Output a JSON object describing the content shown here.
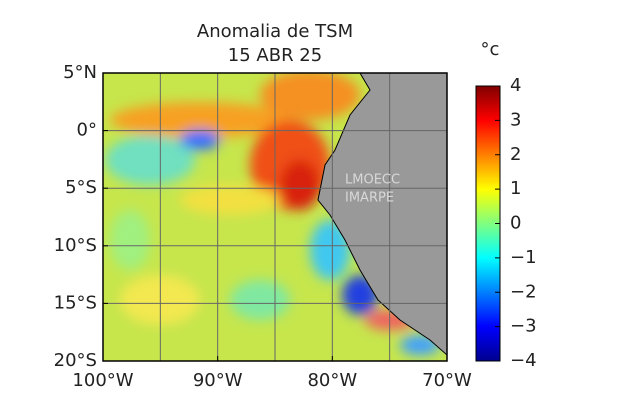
{
  "title": [
    "Anomalia de TSM",
    "15 ABR 25"
  ],
  "map": {
    "xlim": [
      -100,
      -70
    ],
    "ylim": [
      -20,
      5
    ],
    "xticks": [
      {
        "value": -100,
        "label": "100°W"
      },
      {
        "value": -90,
        "label": "90°W"
      },
      {
        "value": -80,
        "label": "80°W"
      },
      {
        "value": -70,
        "label": "70°W"
      }
    ],
    "yticks": [
      {
        "value": 5,
        "label": "5°N"
      },
      {
        "value": 0,
        "label": "0°"
      },
      {
        "value": -5,
        "label": "5°S"
      },
      {
        "value": -10,
        "label": "10°S"
      },
      {
        "value": -15,
        "label": "15°S"
      },
      {
        "value": -20,
        "label": "20°S"
      }
    ],
    "xgrid": [
      -95,
      -90,
      -85,
      -80,
      -75
    ],
    "ygrid": [
      0,
      -5,
      -10,
      -15
    ],
    "watermark": [
      "LMOECC",
      "IMARPE"
    ]
  },
  "colorbar": {
    "label": "°c",
    "lim": [
      -4,
      4
    ],
    "ticks": [
      {
        "value": -4,
        "label": "−4"
      },
      {
        "value": -3,
        "label": "−3"
      },
      {
        "value": -2,
        "label": "−2"
      },
      {
        "value": -1,
        "label": "−1"
      },
      0,
      1,
      2,
      3,
      4
    ]
  }
}
